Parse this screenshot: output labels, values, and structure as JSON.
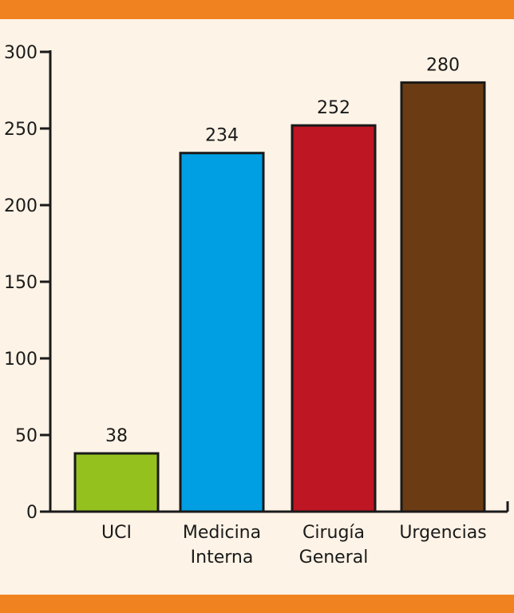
{
  "header_band_color": "#f0821f",
  "background_color": "#fdf3e6",
  "chart_data": {
    "type": "bar",
    "title": "",
    "xlabel": "",
    "ylabel": "",
    "categories": [
      [
        "UCI"
      ],
      [
        "Medicina",
        "Interna"
      ],
      [
        "Cirugía",
        "General"
      ],
      [
        "Urgencias"
      ]
    ],
    "values": [
      38,
      234,
      252,
      280
    ],
    "bar_colors": [
      "#95c11f",
      "#009fe3",
      "#be1622",
      "#6b3c13"
    ],
    "ylim": [
      0,
      300
    ],
    "yticks": [
      0,
      50,
      100,
      150,
      200,
      250,
      300
    ],
    "grid": false,
    "legend": "none"
  }
}
